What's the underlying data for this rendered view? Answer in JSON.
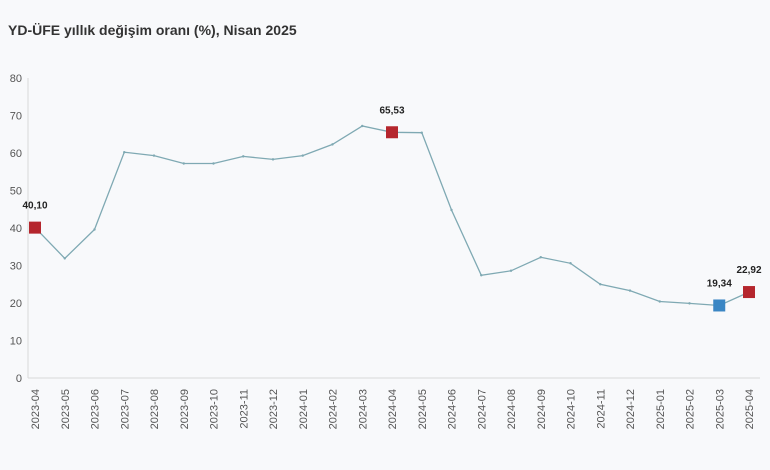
{
  "chart_data": {
    "type": "line",
    "title": "YD-ÜFE yıllık değişim oranı (%), Nisan 2025",
    "xlabel": "",
    "ylabel": "",
    "ylim": [
      0,
      80
    ],
    "yticks": [
      0,
      10,
      20,
      30,
      40,
      50,
      60,
      70,
      80
    ],
    "grid": false,
    "legend": "none",
    "categories": [
      "2023-04",
      "2023-05",
      "2023-06",
      "2023-07",
      "2023-08",
      "2023-09",
      "2023-10",
      "2023-11",
      "2023-12",
      "2024-01",
      "2024-02",
      "2024-03",
      "2024-04",
      "2024-05",
      "2024-06",
      "2024-07",
      "2024-08",
      "2024-09",
      "2024-10",
      "2024-11",
      "2024-12",
      "2025-01",
      "2025-02",
      "2025-03",
      "2025-04"
    ],
    "series": [
      {
        "values": [
          40.1,
          31.9,
          39.6,
          60.2,
          59.3,
          57.2,
          57.2,
          59.1,
          58.3,
          59.3,
          62.3,
          67.2,
          65.53,
          65.4,
          44.8,
          27.4,
          28.6,
          32.2,
          30.6,
          25.0,
          23.3,
          20.4,
          19.9,
          19.34,
          22.92
        ],
        "color": "#7fa9b3"
      }
    ],
    "highlights": [
      {
        "category": "2023-04",
        "value": 40.1,
        "label": "40,10",
        "color": "#b5262d"
      },
      {
        "category": "2024-04",
        "value": 65.53,
        "label": "65,53",
        "color": "#b5262d"
      },
      {
        "category": "2025-03",
        "value": 19.34,
        "label": "19,34",
        "color": "#3a86c4"
      },
      {
        "category": "2025-04",
        "value": 22.92,
        "label": "22,92",
        "color": "#b5262d"
      }
    ]
  }
}
